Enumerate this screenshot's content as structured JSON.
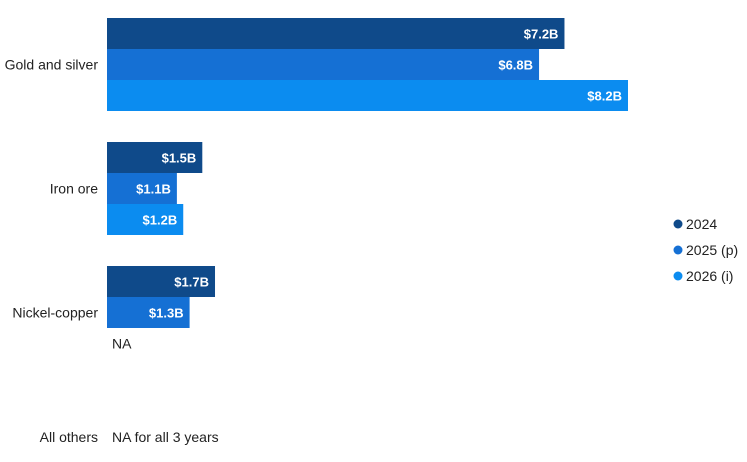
{
  "chart_data": {
    "type": "bar",
    "orientation": "horizontal",
    "categories": [
      "Gold and silver",
      "Iron ore",
      "Nickel-copper",
      "All others"
    ],
    "series": [
      {
        "name": "2024",
        "values": [
          7.2,
          1.5,
          1.7,
          null
        ],
        "labels": [
          "$7.2B",
          "$1.5B",
          "$1.7B",
          ""
        ],
        "color": "#0f4a8a"
      },
      {
        "name": "2025 (p)",
        "values": [
          6.8,
          1.1,
          1.3,
          null
        ],
        "labels": [
          "$6.8B",
          "$1.1B",
          "$1.3B",
          ""
        ],
        "color": "#1570d4"
      },
      {
        "name": "2026 (i)",
        "values": [
          8.2,
          1.2,
          null,
          null
        ],
        "labels": [
          "$8.2B",
          "$1.2B",
          "",
          ""
        ],
        "color": "#0b8cf0"
      }
    ],
    "annotations": [
      {
        "category": "Nickel-copper",
        "series": "2026 (i)",
        "text": "NA"
      },
      {
        "category": "All others",
        "series": "all",
        "text": "NA for all 3 years"
      }
    ],
    "xlim": [
      0,
      8.2
    ],
    "legend_position": "right",
    "grid": false,
    "title": "",
    "xlabel": "",
    "ylabel": ""
  }
}
